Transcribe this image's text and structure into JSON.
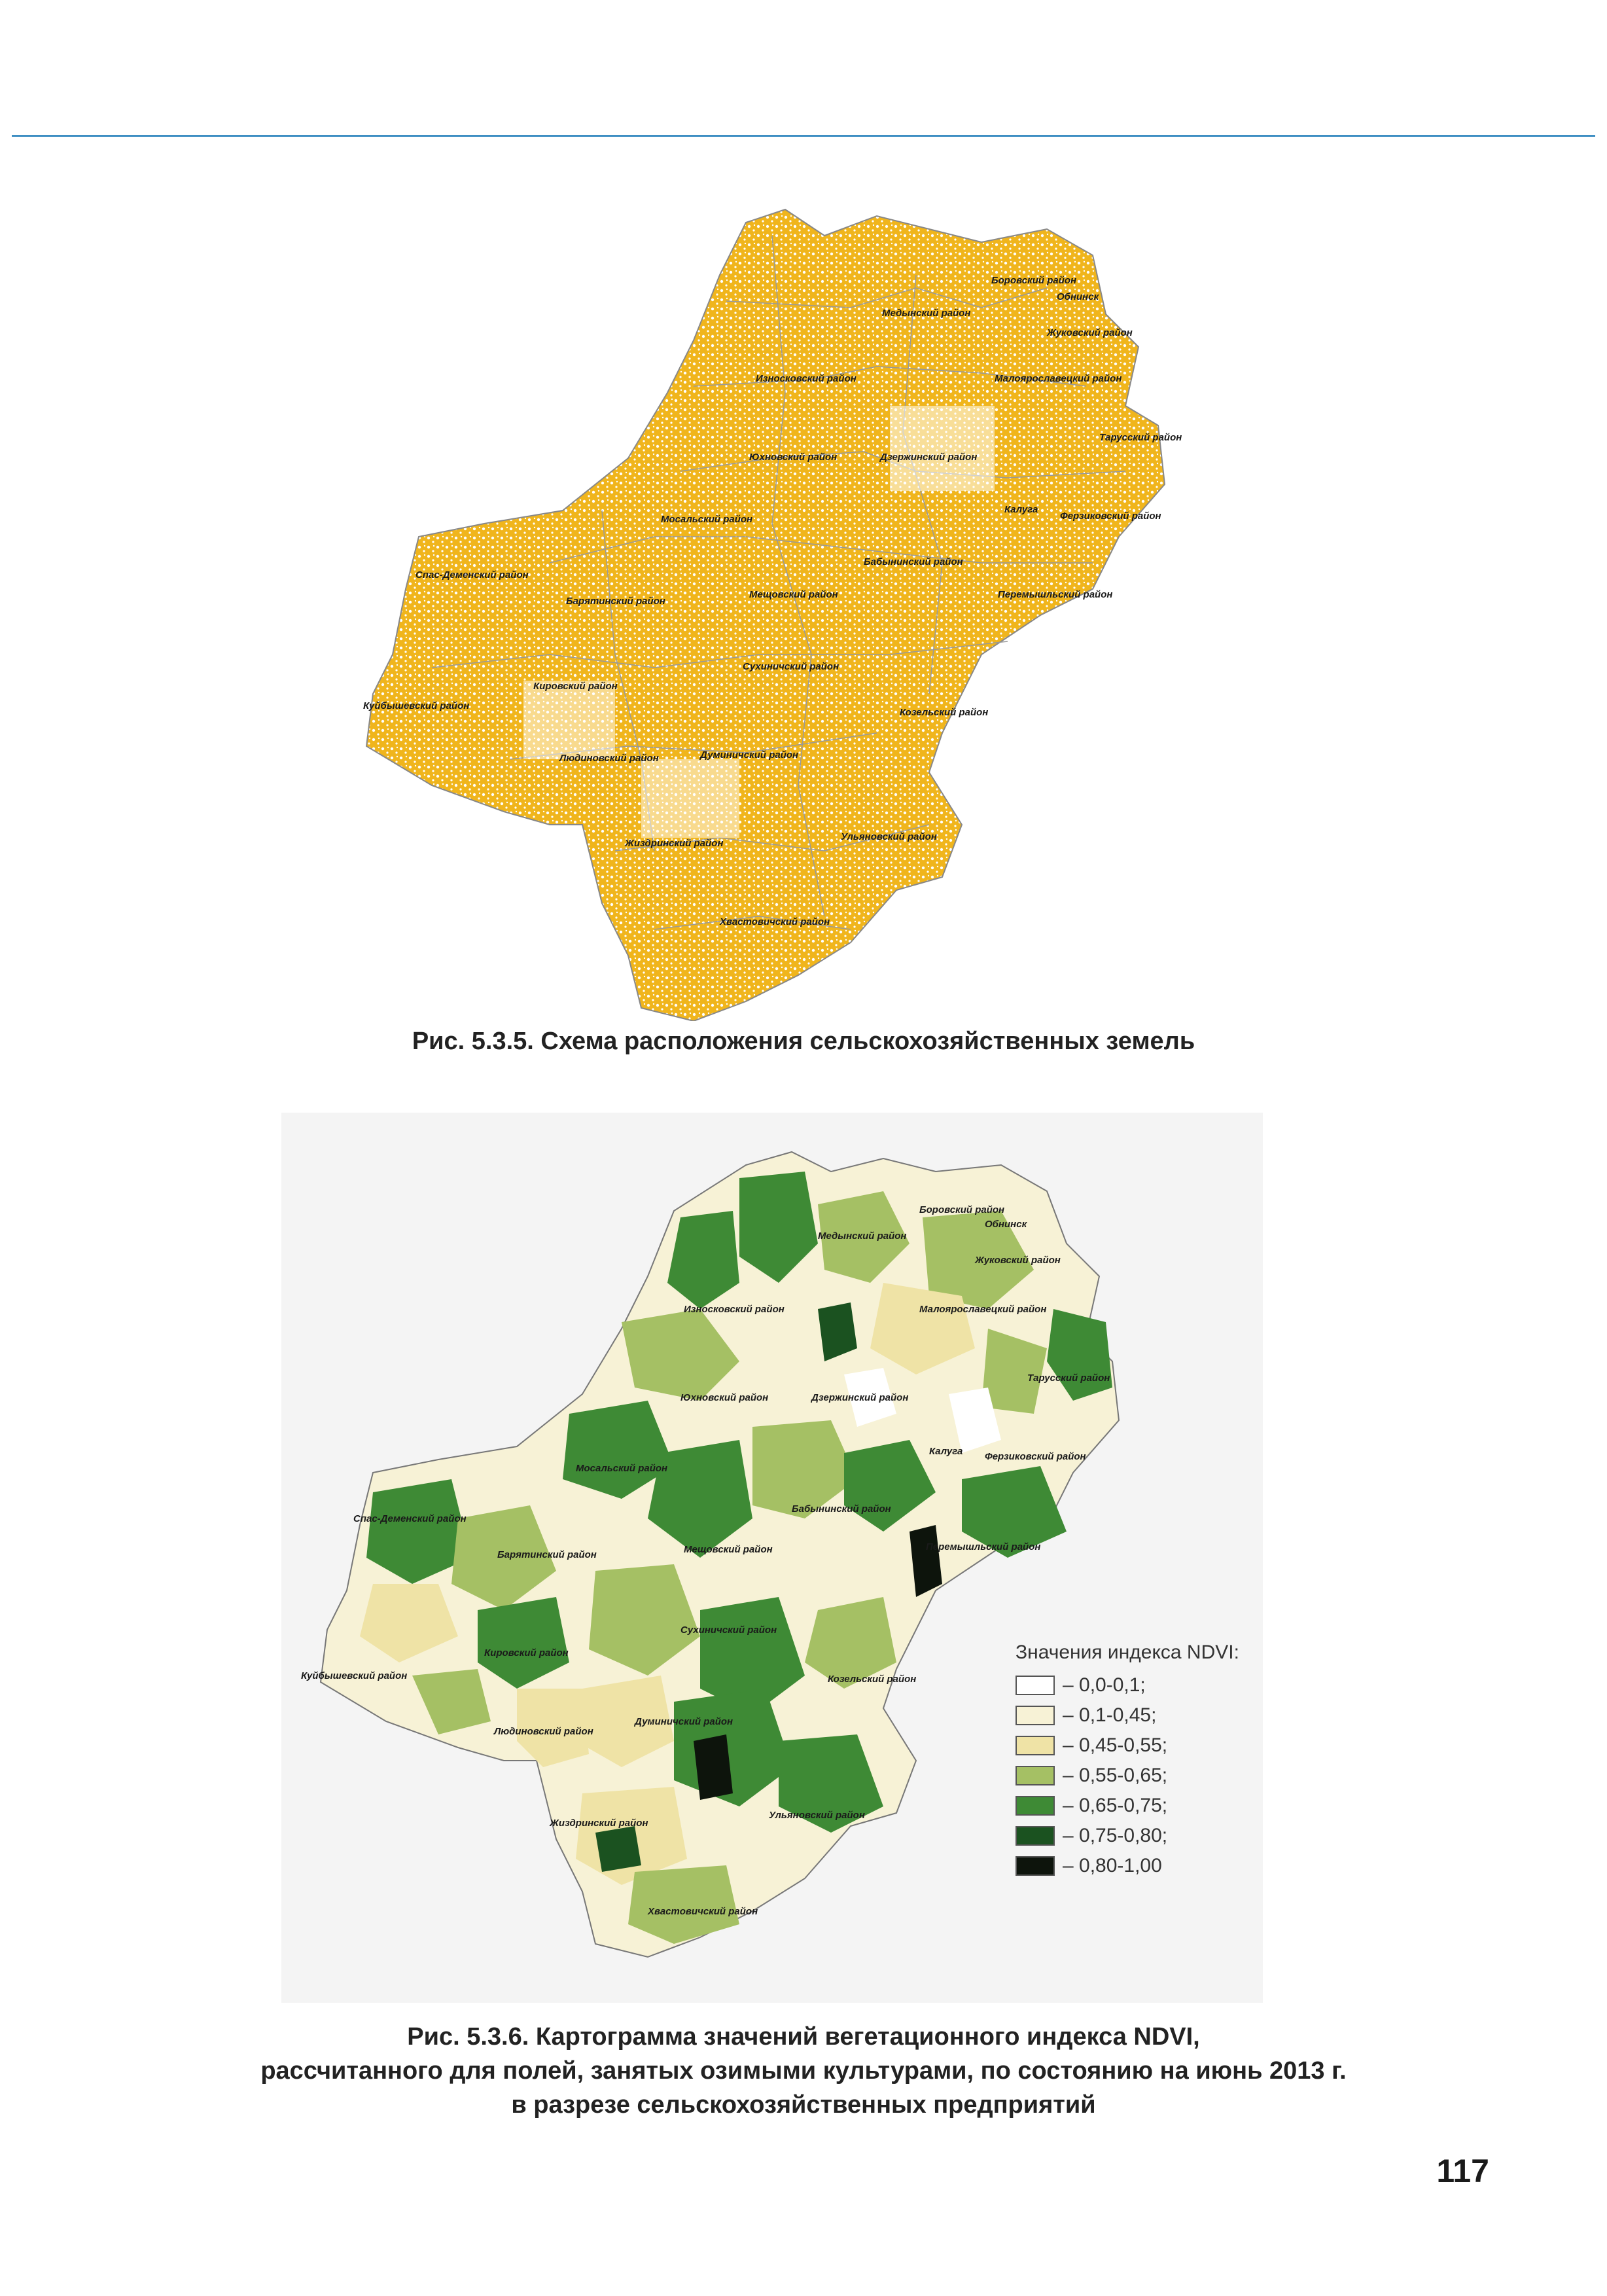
{
  "page_number": "117",
  "figure1": {
    "caption": "Рис. 5.3.5.  Схема расположения сельскохозяйственных земель",
    "fill_color": "#f0b51c"
  },
  "figure2": {
    "caption_lines": [
      "Рис. 5.3.6.  Картограмма значений вегетационного индекса NDVI,",
      "рассчитанного для полей, занятых озимыми культурами, по состоянию на июнь  2013 г.",
      "в разрезе сельскохозяйственных предприятий"
    ],
    "legend": {
      "title": "Значения индекса NDVI:",
      "items": [
        {
          "label": "– 0,0-0,1;",
          "color": "#ffffff"
        },
        {
          "label": "– 0,1-0,45;",
          "color": "#f7f2d6"
        },
        {
          "label": "– 0,45-0,55;",
          "color": "#efe3a6"
        },
        {
          "label": "– 0,55-0,65;",
          "color": "#a5c064"
        },
        {
          "label": "– 0,65-0,75;",
          "color": "#3e8a35"
        },
        {
          "label": "– 0,75-0,80;",
          "color": "#1b5220"
        },
        {
          "label": "– 0,80-1,00",
          "color": "#0d140c"
        }
      ]
    }
  },
  "districts": [
    "Боровский район",
    "Обнинск",
    "Медынский район",
    "Жуковский район",
    "Износковский район",
    "Малоярославецкий район",
    "Тарусский район",
    "Юхновский район",
    "Дзержинский район",
    "Калуга",
    "Ферзиковский район",
    "Мосальский район",
    "Бабынинский район",
    "Спас-Деменский район",
    "Барятинский район",
    "Мещовский район",
    "Перемышльский район",
    "Сухиничский район",
    "Кировский район",
    "Куйбышевский район",
    "Козельский район",
    "Людиновский район",
    "Думиничский район",
    "Ульяновский район",
    "Жиздринский район",
    "Хвастовичский район"
  ]
}
